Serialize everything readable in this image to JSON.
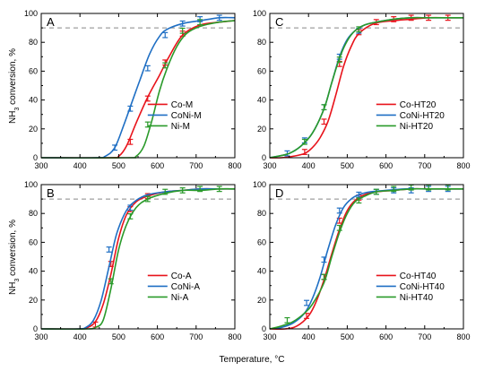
{
  "figure": {
    "xlabel": "Temperature, °C",
    "ylabel_parts": [
      "NH",
      "3",
      " conversion, %"
    ],
    "reference_line": 90
  },
  "chart_data": [
    {
      "id": "A",
      "type": "line",
      "title": "A",
      "xlim": [
        300,
        800
      ],
      "ylim": [
        0,
        100
      ],
      "xticks": [
        300,
        400,
        500,
        600,
        700,
        800
      ],
      "yticks": [
        0,
        20,
        40,
        60,
        80,
        100
      ],
      "legend_position": "center-right",
      "series": [
        {
          "name": "Co-M",
          "color": "#e8131b",
          "x": [
            300,
            480,
            500,
            520,
            545,
            575,
            605,
            630,
            665,
            710,
            760,
            800
          ],
          "y": [
            0,
            0,
            1,
            8,
            24,
            42,
            57,
            70,
            85,
            92,
            94,
            95
          ],
          "errors": [
            {
              "x": 530,
              "y": 11
            },
            {
              "x": 575,
              "y": 41
            },
            {
              "x": 620,
              "y": 66
            },
            {
              "x": 665,
              "y": 86
            }
          ]
        },
        {
          "name": "CoNi-M",
          "color": "#1f6fc4",
          "x": [
            300,
            440,
            465,
            490,
            515,
            535,
            555,
            580,
            605,
            625,
            665,
            710,
            760,
            800
          ],
          "y": [
            0,
            0,
            1,
            7,
            24,
            39,
            54,
            72,
            84,
            89,
            93,
            95,
            97,
            97
          ],
          "errors": [
            {
              "x": 490,
              "y": 7
            },
            {
              "x": 530,
              "y": 34
            },
            {
              "x": 575,
              "y": 62
            },
            {
              "x": 620,
              "y": 85
            },
            {
              "x": 665,
              "y": 93
            },
            {
              "x": 710,
              "y": 96
            },
            {
              "x": 760,
              "y": 97
            }
          ]
        },
        {
          "name": "Ni-M",
          "color": "#2a9a2a",
          "x": [
            300,
            520,
            545,
            565,
            585,
            605,
            625,
            650,
            675,
            710,
            760,
            800
          ],
          "y": [
            0,
            0,
            1,
            8,
            25,
            46,
            62,
            77,
            86,
            91,
            94,
            95
          ],
          "errors": [
            {
              "x": 575,
              "y": 23
            },
            {
              "x": 620,
              "y": 64
            },
            {
              "x": 665,
              "y": 88
            },
            {
              "x": 710,
              "y": 94
            }
          ]
        }
      ]
    },
    {
      "id": "C",
      "type": "line",
      "title": "C",
      "xlim": [
        300,
        800
      ],
      "ylim": [
        0,
        100
      ],
      "xticks": [
        300,
        400,
        500,
        600,
        700,
        800
      ],
      "yticks": [
        0,
        20,
        40,
        60,
        80,
        100
      ],
      "legend_position": "center-right",
      "series": [
        {
          "name": "Co-HT20",
          "color": "#e8131b",
          "x": [
            300,
            330,
            360,
            390,
            410,
            430,
            450,
            470,
            490,
            510,
            530,
            570,
            620,
            665,
            710,
            760,
            800
          ],
          "y": [
            0,
            0,
            1,
            3,
            7,
            14,
            25,
            43,
            63,
            77,
            86,
            93,
            95,
            96,
            97,
            97,
            97
          ],
          "errors": [
            {
              "x": 390,
              "y": 4
            },
            {
              "x": 440,
              "y": 25
            },
            {
              "x": 480,
              "y": 65
            },
            {
              "x": 530,
              "y": 87
            },
            {
              "x": 575,
              "y": 94
            },
            {
              "x": 620,
              "y": 96
            },
            {
              "x": 665,
              "y": 97
            },
            {
              "x": 710,
              "y": 97
            },
            {
              "x": 760,
              "y": 97
            }
          ]
        },
        {
          "name": "CoNi-HT20",
          "color": "#1f6fc4",
          "x": [
            300,
            320,
            350,
            380,
            410,
            440,
            460,
            480,
            500,
            520,
            545,
            575,
            620,
            665,
            710,
            760,
            800
          ],
          "y": [
            0,
            1,
            3,
            8,
            17,
            34,
            52,
            70,
            82,
            88,
            92,
            94,
            96,
            97,
            97,
            97,
            97
          ],
          "errors": [
            {
              "x": 345,
              "y": 3
            },
            {
              "x": 390,
              "y": 12
            },
            {
              "x": 440,
              "y": 35
            },
            {
              "x": 480,
              "y": 70
            },
            {
              "x": 530,
              "y": 88
            }
          ]
        },
        {
          "name": "Ni-HT20",
          "color": "#2a9a2a",
          "x": [
            300,
            320,
            350,
            380,
            410,
            440,
            460,
            480,
            500,
            520,
            545,
            575,
            620,
            665,
            710,
            760,
            800
          ],
          "y": [
            0,
            1,
            3,
            8,
            17,
            34,
            52,
            69,
            81,
            88,
            92,
            94,
            96,
            97,
            97,
            97,
            97
          ],
          "errors": [
            {
              "x": 390,
              "y": 11
            },
            {
              "x": 440,
              "y": 35
            },
            {
              "x": 480,
              "y": 68
            },
            {
              "x": 530,
              "y": 89
            }
          ]
        }
      ]
    },
    {
      "id": "B",
      "type": "line",
      "title": "B",
      "xlim": [
        300,
        800
      ],
      "ylim": [
        0,
        100
      ],
      "xticks": [
        300,
        400,
        500,
        600,
        700,
        800
      ],
      "yticks": [
        0,
        20,
        40,
        60,
        80,
        100
      ],
      "legend_position": "center-right",
      "series": [
        {
          "name": "Co-A",
          "color": "#e8131b",
          "x": [
            300,
            400,
            420,
            440,
            460,
            480,
            500,
            520,
            545,
            575,
            620,
            665,
            710,
            760,
            800
          ],
          "y": [
            0,
            0,
            1,
            5,
            17,
            38,
            63,
            79,
            88,
            92,
            95,
            96,
            97,
            97,
            97
          ],
          "errors": [
            {
              "x": 440,
              "y": 3
            },
            {
              "x": 480,
              "y": 45
            },
            {
              "x": 530,
              "y": 83
            },
            {
              "x": 575,
              "y": 92
            }
          ]
        },
        {
          "name": "CoNi-A",
          "color": "#1f6fc4",
          "x": [
            300,
            395,
            415,
            435,
            455,
            475,
            495,
            520,
            545,
            575,
            620,
            665,
            710,
            760,
            800
          ],
          "y": [
            0,
            0,
            1,
            6,
            20,
            43,
            66,
            82,
            89,
            93,
            95,
            96,
            97,
            97,
            97
          ],
          "errors": [
            {
              "x": 475,
              "y": 55
            },
            {
              "x": 530,
              "y": 84
            }
          ]
        },
        {
          "name": "Ni-A",
          "color": "#2a9a2a",
          "x": [
            300,
            420,
            440,
            460,
            480,
            500,
            520,
            545,
            575,
            620,
            665,
            710,
            760,
            800
          ],
          "y": [
            0,
            0,
            1,
            6,
            28,
            55,
            72,
            84,
            90,
            94,
            96,
            96,
            97,
            97
          ],
          "errors": [
            {
              "x": 480,
              "y": 33
            },
            {
              "x": 530,
              "y": 78
            },
            {
              "x": 575,
              "y": 90
            },
            {
              "x": 620,
              "y": 95
            },
            {
              "x": 665,
              "y": 96
            },
            {
              "x": 710,
              "y": 97
            },
            {
              "x": 760,
              "y": 97
            }
          ]
        }
      ]
    },
    {
      "id": "D",
      "type": "line",
      "title": "D",
      "xlim": [
        300,
        800
      ],
      "ylim": [
        0,
        100
      ],
      "xticks": [
        300,
        400,
        500,
        600,
        700,
        800
      ],
      "yticks": [
        0,
        20,
        40,
        60,
        80,
        100
      ],
      "legend_position": "center-right",
      "series": [
        {
          "name": "Co-HT40",
          "color": "#e8131b",
          "x": [
            300,
            340,
            370,
            400,
            420,
            440,
            460,
            480,
            500,
            520,
            545,
            575,
            620,
            665,
            710,
            760,
            800
          ],
          "y": [
            0,
            0,
            2,
            9,
            19,
            34,
            52,
            69,
            82,
            89,
            93,
            95,
            96,
            97,
            97,
            97,
            97
          ],
          "errors": [
            {
              "x": 395,
              "y": 9
            },
            {
              "x": 440,
              "y": 36
            },
            {
              "x": 480,
              "y": 75
            },
            {
              "x": 530,
              "y": 91
            }
          ]
        },
        {
          "name": "CoNi-HT40",
          "color": "#1f6fc4",
          "x": [
            300,
            330,
            360,
            390,
            410,
            430,
            450,
            470,
            490,
            510,
            530,
            560,
            600,
            650,
            700,
            760,
            800
          ],
          "y": [
            0,
            1,
            4,
            11,
            21,
            36,
            55,
            72,
            84,
            90,
            93,
            95,
            96,
            97,
            97,
            97,
            97
          ],
          "errors": [
            {
              "x": 395,
              "y": 18
            },
            {
              "x": 440,
              "y": 48
            },
            {
              "x": 480,
              "y": 82
            },
            {
              "x": 530,
              "y": 93
            },
            {
              "x": 575,
              "y": 95
            },
            {
              "x": 620,
              "y": 96
            },
            {
              "x": 665,
              "y": 96
            },
            {
              "x": 710,
              "y": 97
            },
            {
              "x": 760,
              "y": 97
            }
          ]
        },
        {
          "name": "Ni-HT40",
          "color": "#2a9a2a",
          "x": [
            300,
            330,
            360,
            390,
            410,
            440,
            460,
            480,
            500,
            520,
            545,
            575,
            620,
            665,
            710,
            760,
            800
          ],
          "y": [
            0,
            2,
            5,
            11,
            17,
            32,
            50,
            67,
            80,
            88,
            92,
            95,
            96,
            97,
            97,
            97,
            97
          ],
          "errors": [
            {
              "x": 345,
              "y": 6
            },
            {
              "x": 440,
              "y": 36
            },
            {
              "x": 480,
              "y": 70
            },
            {
              "x": 530,
              "y": 89
            },
            {
              "x": 575,
              "y": 95
            },
            {
              "x": 620,
              "y": 97
            },
            {
              "x": 665,
              "y": 98
            },
            {
              "x": 710,
              "y": 98
            },
            {
              "x": 760,
              "y": 98
            }
          ]
        }
      ]
    }
  ]
}
